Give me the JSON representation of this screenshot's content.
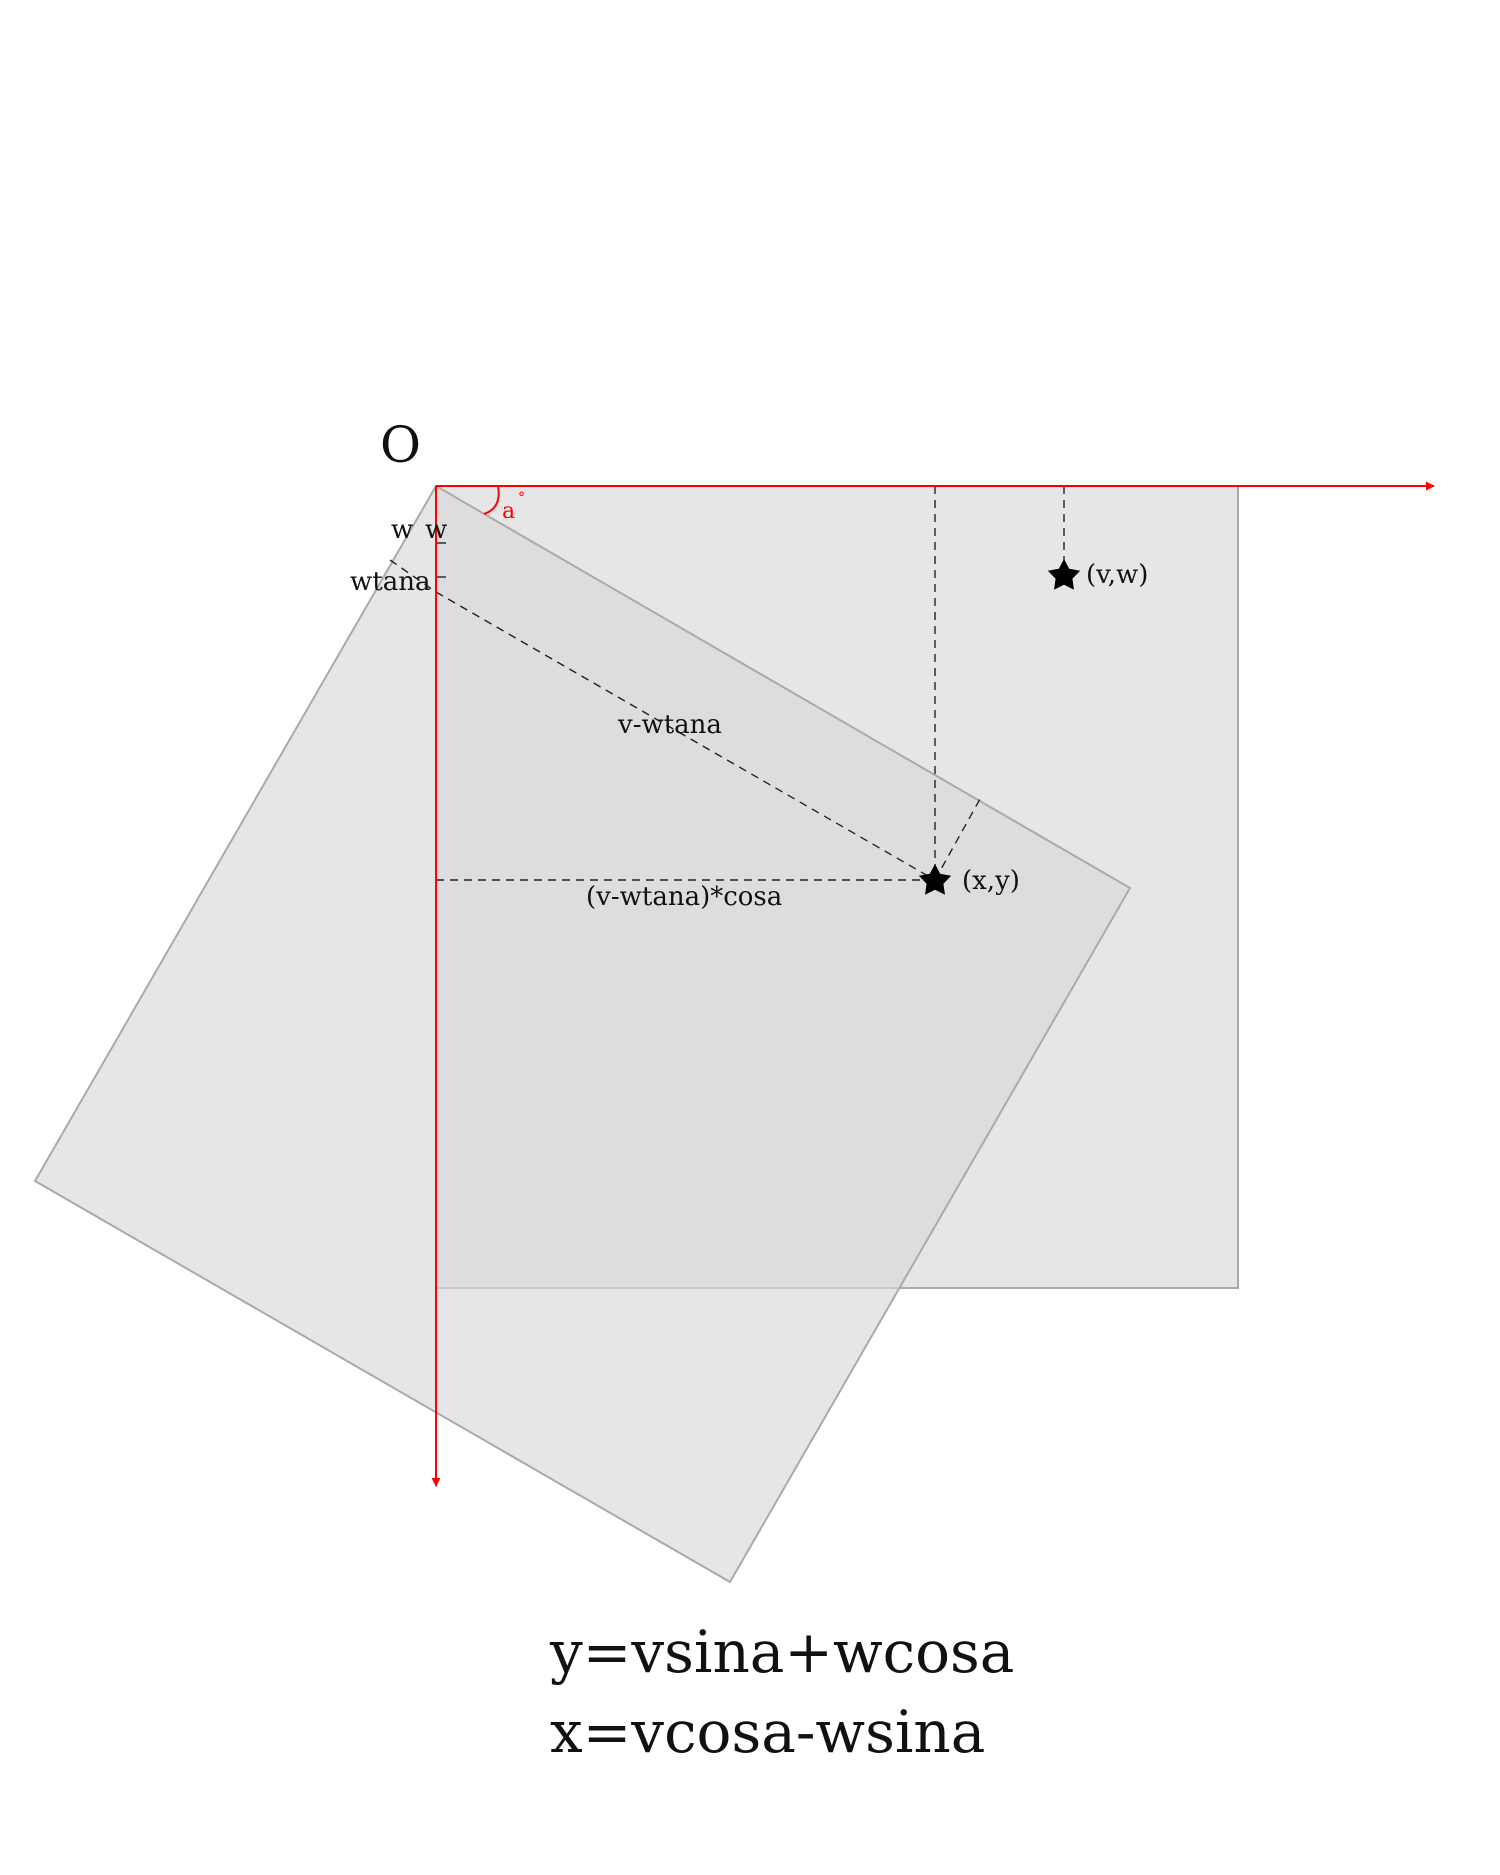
{
  "origin_label": "O",
  "angle_label": "a",
  "degree_mark": "°",
  "labels": {
    "w_left": "w",
    "w_right": "w",
    "wtana": "wtana",
    "v_minus_wtana": "v-wtana",
    "projection": "(v-wtana)*cosa",
    "point_xy": "(x,y)",
    "point_vw": "(v,w)"
  },
  "formulas": {
    "y": "y=vsina+wcosa",
    "x": "x=vcosa-wsina"
  },
  "colors": {
    "axis": "#ff0000",
    "rect_fill": "#d8d8d8",
    "rect_stroke": "#aaaaaa",
    "guide": "#222222",
    "star": "#000000"
  },
  "icons": {
    "point_marker": "star-icon"
  }
}
